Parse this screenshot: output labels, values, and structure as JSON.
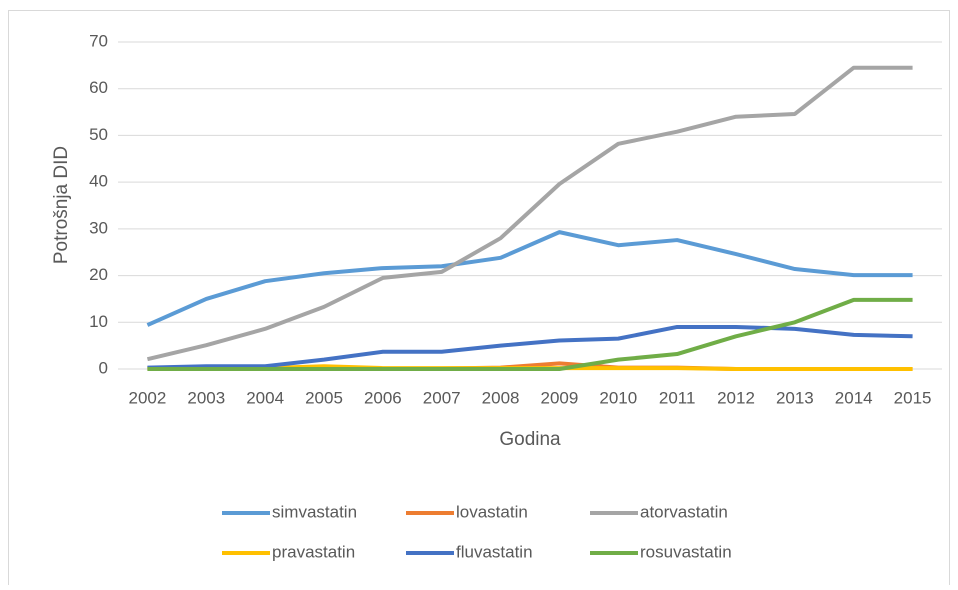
{
  "chart_data": {
    "type": "line",
    "x_label": "Godina",
    "y_label": "Potrošnja DID",
    "categories": [
      "2002",
      "2003",
      "2004",
      "2005",
      "2006",
      "2007",
      "2008",
      "2009",
      "2010",
      "2011",
      "2012",
      "2013",
      "2014",
      "2015"
    ],
    "series": [
      {
        "name": "simvastatin",
        "color": "#5b9bd5",
        "values": [
          9.4,
          15,
          18.8,
          20.5,
          21.6,
          22,
          23.8,
          29.3,
          26.5,
          27.6,
          24.6,
          21.4,
          20.1,
          20.1
        ]
      },
      {
        "name": "lovastatin",
        "color": "#ed7d31",
        "values": [
          0.2,
          0.2,
          0.2,
          0.2,
          0.1,
          0.1,
          0.3,
          1.2,
          0.3,
          0.3,
          0,
          0,
          0,
          0
        ]
      },
      {
        "name": "atorvastatin",
        "color": "#a5a5a5",
        "values": [
          2.1,
          5.1,
          8.6,
          13.3,
          19.5,
          20.8,
          28,
          39.6,
          48.2,
          50.8,
          54,
          54.6,
          64.5,
          64.5
        ]
      },
      {
        "name": "pravastatin",
        "color": "#ffc000",
        "values": [
          0.1,
          0.1,
          0.2,
          0.6,
          0.2,
          0.2,
          0.2,
          0.2,
          0.2,
          0.2,
          0,
          0,
          0,
          0
        ]
      },
      {
        "name": "fluvastatin",
        "color": "#4472c4",
        "values": [
          0.3,
          0.6,
          0.6,
          2.0,
          3.7,
          3.7,
          5.0,
          6.1,
          6.5,
          9.0,
          9.0,
          8.6,
          7.3,
          7.0
        ]
      },
      {
        "name": "rosuvastatin",
        "color": "#70ad47",
        "values": [
          0,
          0,
          0,
          0,
          0,
          0,
          0,
          0,
          2.0,
          3.2,
          7.0,
          10,
          14.8,
          14.8
        ]
      }
    ],
    "ylim": [
      0,
      70
    ],
    "yticks": [
      0,
      10,
      20,
      30,
      40,
      50,
      60,
      70
    ],
    "grid": true,
    "legend": "bottom"
  }
}
